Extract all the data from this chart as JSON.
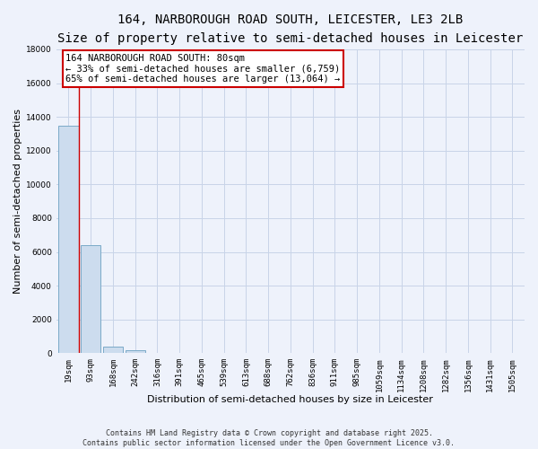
{
  "title": "164, NARBOROUGH ROAD SOUTH, LEICESTER, LE3 2LB",
  "subtitle": "Size of property relative to semi-detached houses in Leicester",
  "xlabel": "Distribution of semi-detached houses by size in Leicester",
  "ylabel": "Number of semi-detached properties",
  "bar_labels": [
    "19sqm",
    "93sqm",
    "168sqm",
    "242sqm",
    "316sqm",
    "391sqm",
    "465sqm",
    "539sqm",
    "613sqm",
    "688sqm",
    "762sqm",
    "836sqm",
    "911sqm",
    "985sqm",
    "1059sqm",
    "1134sqm",
    "1208sqm",
    "1282sqm",
    "1356sqm",
    "1431sqm",
    "1505sqm"
  ],
  "bar_values": [
    13500,
    6400,
    400,
    200,
    30,
    20,
    10,
    5,
    5,
    5,
    5,
    5,
    5,
    5,
    5,
    5,
    5,
    5,
    5,
    5,
    5
  ],
  "bar_color": "#ccdcee",
  "bar_edge_color": "#7aaac8",
  "grid_color": "#c8d4e8",
  "bg_color": "#eef2fb",
  "ylim": [
    0,
    18000
  ],
  "yticks": [
    0,
    2000,
    4000,
    6000,
    8000,
    10000,
    12000,
    14000,
    16000,
    18000
  ],
  "red_line_x": 0.5,
  "annotation_text": "164 NARBOROUGH ROAD SOUTH: 80sqm\n← 33% of semi-detached houses are smaller (6,759)\n65% of semi-detached houses are larger (13,064) →",
  "annotation_box_color": "#ffffff",
  "annotation_box_edge": "#cc0000",
  "footer_text": "Contains HM Land Registry data © Crown copyright and database right 2025.\nContains public sector information licensed under the Open Government Licence v3.0.",
  "title_fontsize": 10,
  "subtitle_fontsize": 8.5,
  "axis_label_fontsize": 8,
  "tick_fontsize": 6.5,
  "annotation_fontsize": 7.5,
  "footer_fontsize": 6
}
